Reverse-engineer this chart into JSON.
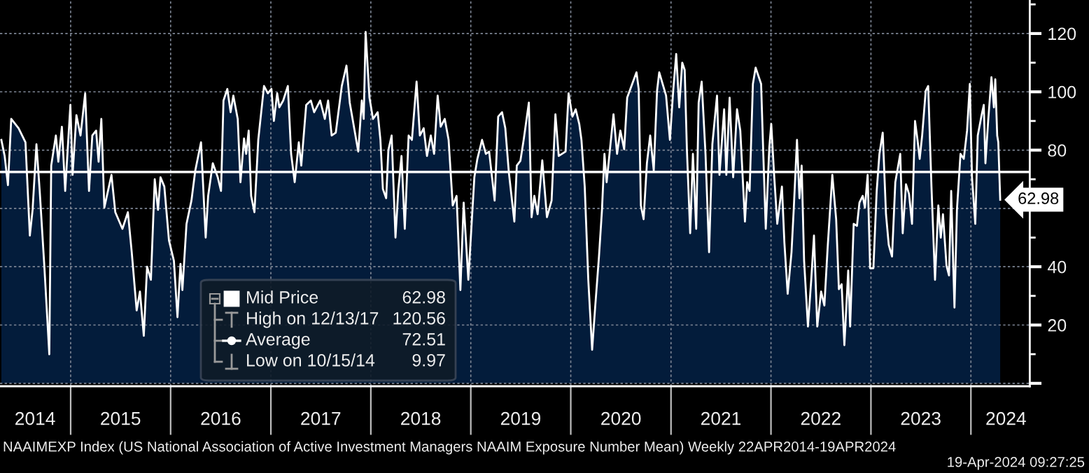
{
  "chart_data": {
    "type": "area",
    "x": [
      "2014-04-23",
      "2014-05-05",
      "2014-05-17",
      "2014-05-29",
      "2014-06-25",
      "2014-07-20",
      "2014-08-05",
      "2014-08-15",
      "2014-08-29",
      "2014-09-10",
      "2014-09-27",
      "2014-10-15",
      "2014-10-22",
      "2014-11-08",
      "2014-11-17",
      "2014-11-30",
      "2014-12-12",
      "2014-12-31",
      "2015-01-08",
      "2015-01-22",
      "2015-02-06",
      "2015-02-23",
      "2015-03-09",
      "2015-03-21",
      "2015-04-04",
      "2015-04-13",
      "2015-04-23",
      "2015-05-04",
      "2015-05-30",
      "2015-06-13",
      "2015-07-09",
      "2015-07-29",
      "2015-08-12",
      "2015-08-30",
      "2015-09-11",
      "2015-09-25",
      "2015-10-07",
      "2015-10-21",
      "2015-11-04",
      "2015-11-16",
      "2015-11-25",
      "2015-12-09",
      "2015-12-26",
      "2016-01-13",
      "2016-01-26",
      "2016-02-06",
      "2016-02-13",
      "2016-02-28",
      "2016-03-17",
      "2016-03-31",
      "2016-04-21",
      "2016-05-08",
      "2016-05-17",
      "2016-06-03",
      "2016-06-21",
      "2016-07-03",
      "2016-07-12",
      "2016-07-26",
      "2016-08-07",
      "2016-08-17",
      "2016-09-02",
      "2016-09-12",
      "2016-09-25",
      "2016-10-03",
      "2016-10-12",
      "2016-10-21",
      "2016-11-02",
      "2016-11-16",
      "2016-12-07",
      "2016-12-21",
      "2017-01-03",
      "2017-01-12",
      "2017-01-24",
      "2017-02-01",
      "2017-02-15",
      "2017-03-04",
      "2017-03-16",
      "2017-03-29",
      "2017-04-13",
      "2017-04-22",
      "2017-05-10",
      "2017-05-27",
      "2017-06-08",
      "2017-06-30",
      "2017-07-17",
      "2017-07-29",
      "2017-08-11",
      "2017-08-26",
      "2017-09-17",
      "2017-10-04",
      "2017-10-16",
      "2017-11-16",
      "2017-11-29",
      "2017-12-06",
      "2017-12-13",
      "2017-12-27",
      "2018-01-09",
      "2018-01-26",
      "2018-02-05",
      "2018-02-14",
      "2018-02-26",
      "2018-03-06",
      "2018-03-18",
      "2018-04-01",
      "2018-04-11",
      "2018-04-23",
      "2018-05-05",
      "2018-05-19",
      "2018-05-31",
      "2018-06-17",
      "2018-06-29",
      "2018-07-13",
      "2018-07-25",
      "2018-08-08",
      "2018-08-20",
      "2018-09-02",
      "2018-09-13",
      "2018-09-28",
      "2018-10-12",
      "2018-10-27",
      "2018-11-10",
      "2018-11-24",
      "2018-12-06",
      "2018-12-23",
      "2019-01-14",
      "2019-01-25",
      "2019-02-11",
      "2019-02-25",
      "2019-03-09",
      "2019-03-29",
      "2019-04-11",
      "2019-04-25",
      "2019-05-07",
      "2019-05-20",
      "2019-06-09",
      "2019-06-18",
      "2019-07-01",
      "2019-07-13",
      "2019-08-01",
      "2019-08-11",
      "2019-08-21",
      "2019-09-02",
      "2019-09-19",
      "2019-10-06",
      "2019-10-23",
      "2019-11-06",
      "2019-11-18",
      "2019-12-13",
      "2019-12-24",
      "2020-01-07",
      "2020-01-19",
      "2020-02-01",
      "2020-02-09",
      "2020-02-21",
      "2020-03-05",
      "2020-03-19",
      "2020-03-30",
      "2020-04-13",
      "2020-04-24",
      "2020-05-03",
      "2020-05-11",
      "2020-06-05",
      "2020-06-18",
      "2020-06-30",
      "2020-07-14",
      "2020-07-25",
      "2020-08-28",
      "2020-09-05",
      "2020-09-13",
      "2020-09-23",
      "2020-10-05",
      "2020-10-17",
      "2020-10-30",
      "2020-11-11",
      "2020-11-19",
      "2020-12-14",
      "2020-12-28",
      "2021-01-09",
      "2021-01-20",
      "2021-01-31",
      "2021-02-11",
      "2021-02-20",
      "2021-02-28",
      "2021-03-12",
      "2021-03-22",
      "2021-04-03",
      "2021-04-12",
      "2021-04-23",
      "2021-05-07",
      "2021-05-20",
      "2021-06-01",
      "2021-06-18",
      "2021-06-27",
      "2021-07-14",
      "2021-07-22",
      "2021-08-03",
      "2021-08-16",
      "2021-08-30",
      "2021-09-11",
      "2021-09-28",
      "2021-10-06",
      "2021-10-15",
      "2021-10-27",
      "2021-11-06",
      "2021-11-26",
      "2021-12-04",
      "2021-12-13",
      "2021-12-26",
      "2022-01-02",
      "2022-01-12",
      "2022-01-24",
      "2022-02-10",
      "2022-02-19",
      "2022-03-03",
      "2022-03-17",
      "2022-03-25",
      "2022-04-06",
      "2022-04-15",
      "2022-04-23",
      "2022-05-02",
      "2022-05-16",
      "2022-05-28",
      "2022-06-07",
      "2022-06-19",
      "2022-07-03",
      "2022-07-15",
      "2022-07-27",
      "2022-08-13",
      "2022-08-27",
      "2022-09-06",
      "2022-09-16",
      "2022-09-26",
      "2022-10-10",
      "2022-10-17",
      "2022-10-30",
      "2022-11-11",
      "2022-11-20",
      "2022-12-02",
      "2022-12-10",
      "2022-12-20",
      "2022-12-29",
      "2023-01-10",
      "2023-01-22",
      "2023-02-01",
      "2023-02-13",
      "2023-02-25",
      "2023-03-07",
      "2023-03-19",
      "2023-03-31",
      "2023-04-18",
      "2023-04-27",
      "2023-05-09",
      "2023-05-20",
      "2023-05-31",
      "2023-06-11",
      "2023-06-20",
      "2023-06-28",
      "2023-07-07",
      "2023-07-20",
      "2023-07-29",
      "2023-08-10",
      "2023-08-23",
      "2023-09-04",
      "2023-09-13",
      "2023-09-21",
      "2023-10-04",
      "2023-10-13",
      "2023-10-21",
      "2023-11-02",
      "2023-11-11",
      "2023-11-24",
      "2023-12-06",
      "2023-12-18",
      "2023-12-28",
      "2024-01-05",
      "2024-01-17",
      "2024-01-26",
      "2024-02-08",
      "2024-02-17",
      "2024-02-23",
      "2024-03-04",
      "2024-03-16",
      "2024-03-25",
      "2024-03-30",
      "2024-04-06",
      "2024-04-10",
      "2024-04-17"
    ],
    "series": [
      {
        "name": "Mid Price",
        "color": "#ffffff",
        "values": [
          83.5,
          78,
          68,
          90.7,
          87.5,
          82.7,
          50.7,
          59.5,
          82,
          66,
          40,
          9.97,
          74.7,
          85,
          76,
          88,
          66,
          95.5,
          71.5,
          92,
          85,
          99.5,
          66,
          85,
          86.7,
          76,
          90.7,
          60.3,
          71.5,
          58.7,
          53,
          58.7,
          45,
          25,
          31.5,
          16.3,
          40,
          35.5,
          70,
          59.5,
          70.7,
          67.5,
          49,
          42,
          22.7,
          41,
          32,
          54.7,
          62.7,
          73,
          82.7,
          50,
          64.3,
          75.5,
          70.7,
          66,
          97,
          101,
          93,
          98.7,
          90.7,
          69,
          84,
          78.7,
          86.7,
          64.3,
          58.7,
          83.5,
          102,
          99.5,
          101,
          90,
          99.5,
          94.7,
          97,
          102,
          78.7,
          69,
          82.7,
          74.7,
          95.5,
          97,
          93,
          97,
          90.7,
          97,
          85,
          86,
          102,
          109,
          96.3,
          79.5,
          97,
          90.7,
          120.56,
          98,
          90.7,
          93,
          83.5,
          66.7,
          63.5,
          80,
          85,
          50,
          66,
          78,
          53,
          85,
          83.5,
          103.5,
          85,
          87.5,
          78,
          85,
          78.7,
          98.7,
          88,
          90.7,
          83.5,
          61,
          64.3,
          32,
          62,
          35.5,
          70.7,
          77,
          83.5,
          78.7,
          79.5,
          62.7,
          91.5,
          93,
          87.5,
          72.3,
          55.5,
          74.7,
          76.3,
          83.5,
          96.3,
          57,
          64.3,
          58,
          76.5,
          57,
          62.7,
          92.3,
          78,
          79.5,
          99.5,
          91.5,
          94,
          89,
          83.5,
          67.5,
          35.5,
          11.5,
          26,
          43.5,
          59.5,
          78.7,
          69,
          92.3,
          78.7,
          86.7,
          80.3,
          98,
          106.7,
          101,
          61,
          56.3,
          75.5,
          85,
          73,
          100.3,
          106.7,
          98.7,
          83.5,
          100.3,
          113,
          94.7,
          110,
          107.5,
          80.3,
          51.5,
          78.7,
          53,
          96.3,
          103.5,
          78.7,
          45,
          82,
          98.7,
          71.5,
          94,
          71.5,
          98,
          70.7,
          94,
          86.7,
          55.5,
          69,
          66,
          102.7,
          108.3,
          102.7,
          78.7,
          53,
          81,
          89,
          72.3,
          54.7,
          67.5,
          48.3,
          30.7,
          45,
          59.5,
          83.5,
          63.5,
          74.7,
          42,
          19.5,
          35.5,
          50.7,
          19.5,
          31.5,
          26.7,
          46.7,
          71.5,
          56.3,
          32.3,
          34,
          13.1,
          38.7,
          19.5,
          54.7,
          54,
          62,
          64.3,
          60.3,
          71.5,
          39.5,
          39.5,
          66,
          78.7,
          86,
          58,
          47.5,
          43.5,
          69,
          78.7,
          51.5,
          68.3,
          65,
          54.7,
          90,
          83.5,
          77,
          85,
          100.3,
          102,
          67.5,
          35.5,
          61,
          50,
          58,
          40.3,
          37,
          66,
          26,
          59.5,
          78.7,
          77,
          86.7,
          102.7,
          70.7,
          54.7,
          85,
          91.5,
          95.5,
          75.5,
          90,
          105,
          94.7,
          104.3,
          85,
          82.7,
          62.98
        ],
        "value_labels": [
          null,
          null,
          null,
          null,
          null,
          null,
          null,
          null,
          null,
          null,
          null,
          null,
          null,
          null,
          null,
          null,
          null,
          null,
          null,
          null,
          null,
          null,
          null,
          null,
          null,
          null,
          null,
          null,
          null,
          null,
          null,
          null,
          null,
          null,
          null,
          null,
          null,
          null,
          null,
          null,
          null,
          null,
          null,
          null,
          null,
          null,
          null,
          null,
          null,
          null,
          null,
          null,
          null,
          null,
          null,
          null,
          null,
          null,
          null,
          null,
          null,
          null,
          null,
          null,
          null,
          null,
          null,
          null,
          null,
          null,
          null,
          null,
          null,
          null,
          null,
          null,
          null,
          null,
          null,
          null,
          null,
          null,
          null,
          null,
          null,
          null,
          null,
          null,
          null,
          null,
          null,
          null,
          null,
          null,
          null,
          null,
          null,
          null,
          null,
          null,
          null,
          null,
          null,
          null,
          null,
          null,
          null,
          null,
          null,
          null,
          null,
          null,
          null,
          null,
          null,
          null,
          null,
          null,
          null,
          null,
          null,
          null,
          null,
          null,
          null,
          null,
          null,
          null,
          null,
          null,
          null,
          null,
          null,
          null,
          null,
          null,
          null,
          null,
          null,
          null,
          null,
          null,
          null,
          null,
          null,
          null,
          null,
          null,
          null,
          null,
          null,
          null,
          null,
          null,
          null,
          null,
          null,
          null,
          null,
          null,
          null,
          null,
          null,
          null,
          null,
          null,
          null,
          null,
          null,
          null,
          null,
          null,
          null,
          null,
          null,
          null,
          null,
          null,
          null,
          null,
          null,
          null,
          null,
          null,
          null,
          null,
          null,
          null,
          null,
          null,
          null,
          null,
          null,
          null,
          null,
          null,
          null,
          null,
          null,
          null,
          null,
          null,
          null,
          null,
          null,
          null,
          null,
          null,
          null,
          null,
          null,
          null,
          null,
          null,
          null,
          null,
          null,
          null,
          null,
          null,
          null,
          null,
          null,
          null,
          null,
          null,
          null,
          null,
          null,
          null,
          null,
          null,
          null,
          null,
          null,
          null,
          null,
          null,
          null,
          null,
          null,
          null,
          null,
          null,
          null,
          null,
          null,
          null,
          null,
          null,
          null,
          null,
          null,
          null,
          null,
          null,
          null,
          null,
          null,
          null,
          null,
          null,
          null,
          null,
          null,
          null,
          null,
          null,
          null,
          null,
          null,
          null,
          null,
          null,
          null,
          null,
          null,
          null,
          null,
          null,
          null,
          null,
          null,
          null,
          null,
          null,
          "62.98"
        ]
      }
    ],
    "xlim": [
      "2014-04-18",
      "2024-08-03"
    ],
    "ylim": [
      -1,
      131.5
    ],
    "xticks": [
      {
        "value": "2014-08-24",
        "label": "2014"
      },
      {
        "value": "2015-01-01",
        "label": null
      },
      {
        "value": "2015-07-02",
        "label": "2015"
      },
      {
        "value": "2016-01-01",
        "label": null
      },
      {
        "value": "2016-07-02",
        "label": "2016"
      },
      {
        "value": "2017-01-01",
        "label": null
      },
      {
        "value": "2017-07-02",
        "label": "2017"
      },
      {
        "value": "2018-01-01",
        "label": null
      },
      {
        "value": "2018-07-02",
        "label": "2018"
      },
      {
        "value": "2019-01-01",
        "label": null
      },
      {
        "value": "2019-07-02",
        "label": "2019"
      },
      {
        "value": "2020-01-01",
        "label": null
      },
      {
        "value": "2020-07-02",
        "label": "2020"
      },
      {
        "value": "2021-01-01",
        "label": null
      },
      {
        "value": "2021-07-02",
        "label": "2021"
      },
      {
        "value": "2022-01-01",
        "label": null
      },
      {
        "value": "2022-07-02",
        "label": "2022"
      },
      {
        "value": "2023-01-01",
        "label": null
      },
      {
        "value": "2023-07-02",
        "label": "2023"
      },
      {
        "value": "2024-01-01",
        "label": null
      },
      {
        "value": "2024-05-08",
        "label": "2024"
      }
    ],
    "yticks": [
      {
        "value": 0,
        "label": null
      },
      20,
      40,
      {
        "value": 60,
        "label": null
      },
      80,
      100,
      120
    ],
    "grid": true,
    "legend": "bottom",
    "ref_lines": [
      {
        "axis": "y",
        "value": 72.51,
        "label": "Average 72.51",
        "color": "#ffffff"
      }
    ],
    "annotations": [
      "High on 12/13/17 120.56",
      "Low on 10/15/14 9.97",
      "NAAIMEXP Index (US National Association of Active Investment Managers NAAIM Exposure Number Mean) Weekly 22APR2014-19APR2024",
      "19-Apr-2024 09:27:25"
    ]
  }
}
